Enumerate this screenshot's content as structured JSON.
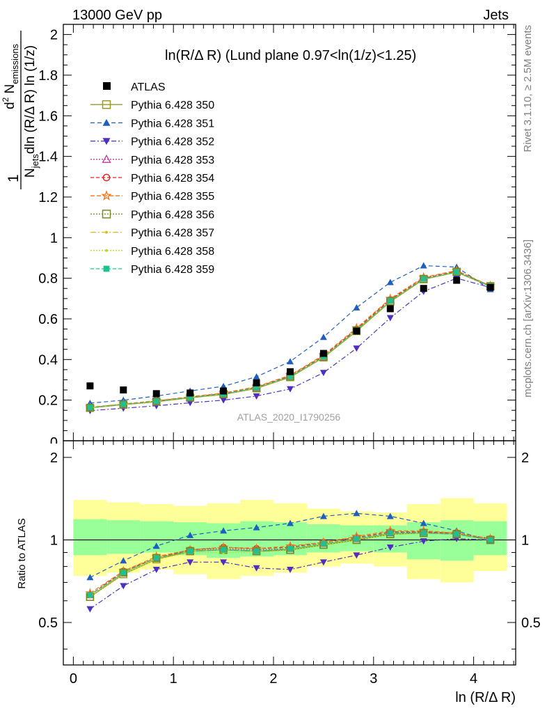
{
  "header": {
    "left": "13000 GeV pp",
    "right": "Jets"
  },
  "side_labels": {
    "rivet": "Rivet 3.1.10, ≥ 2.5M events",
    "mcplots": "mcplots.cern.ch [arXiv:1306.3436]"
  },
  "watermark": "ATLAS_2020_I1790256",
  "chart_data": [
    {
      "type": "line",
      "title": "ln(R/Δ R) (Lund plane 0.97<ln(1/z)<1.25)",
      "ylabel": "1/N_jets d²N_emissions / dln(R/Δ R) ln(1/z)",
      "xlim": [
        -0.1,
        4.42
      ],
      "ylim": [
        0,
        2.05
      ],
      "yticks": [
        "0.2",
        "0.4",
        "0.6",
        "0.8",
        "1",
        "1.2",
        "1.4",
        "1.6",
        "1.8",
        "2"
      ],
      "x": [
        0.167,
        0.5,
        0.83,
        1.167,
        1.5,
        1.83,
        2.167,
        2.5,
        2.83,
        3.167,
        3.5,
        3.83,
        4.167
      ],
      "data": {
        "name": "ATLAS",
        "values": [
          0.27,
          0.25,
          0.232,
          0.235,
          0.245,
          0.285,
          0.34,
          0.43,
          0.54,
          0.65,
          0.75,
          0.79,
          0.755
        ]
      },
      "series": [
        {
          "name": "Pythia 6.428 350",
          "color": "#9a9a20",
          "marker": "square-open",
          "dash": "",
          "values": [
            0.162,
            0.178,
            0.192,
            0.212,
            0.228,
            0.258,
            0.313,
            0.41,
            0.54,
            0.685,
            0.795,
            0.83,
            0.76
          ]
        },
        {
          "name": "Pythia 6.428 351",
          "color": "#1f5fbf",
          "marker": "triangle-up",
          "dash": "6,4",
          "values": [
            0.185,
            0.2,
            0.22,
            0.245,
            0.268,
            0.315,
            0.39,
            0.51,
            0.655,
            0.78,
            0.862,
            0.855,
            0.745
          ]
        },
        {
          "name": "Pythia 6.428 352",
          "color": "#4f2fbf",
          "marker": "triangle-down",
          "dash": "7,3,2,3",
          "values": [
            0.148,
            0.16,
            0.172,
            0.187,
            0.2,
            0.22,
            0.255,
            0.335,
            0.455,
            0.605,
            0.735,
            0.8,
            0.755
          ]
        },
        {
          "name": "Pythia 6.428 353",
          "color": "#c0399a",
          "marker": "triangle-open",
          "dash": "2,2",
          "values": [
            0.163,
            0.179,
            0.194,
            0.214,
            0.231,
            0.262,
            0.318,
            0.415,
            0.547,
            0.693,
            0.8,
            0.833,
            0.762
          ]
        },
        {
          "name": "Pythia 6.428 354",
          "color": "#e02020",
          "marker": "circle-open",
          "dash": "5,3",
          "values": [
            0.164,
            0.18,
            0.196,
            0.215,
            0.233,
            0.263,
            0.32,
            0.418,
            0.55,
            0.695,
            0.8,
            0.835,
            0.762
          ]
        },
        {
          "name": "Pythia 6.428 355",
          "color": "#f07820",
          "marker": "star-open",
          "dash": "6,3",
          "values": [
            0.165,
            0.181,
            0.197,
            0.217,
            0.235,
            0.266,
            0.323,
            0.422,
            0.555,
            0.7,
            0.805,
            0.838,
            0.763
          ]
        },
        {
          "name": "Pythia 6.428 356",
          "color": "#7a8a20",
          "marker": "square-open",
          "dash": "2,2",
          "values": [
            0.162,
            0.178,
            0.193,
            0.213,
            0.23,
            0.26,
            0.316,
            0.413,
            0.543,
            0.688,
            0.797,
            0.832,
            0.761
          ]
        },
        {
          "name": "Pythia 6.428 357",
          "color": "#d8c020",
          "marker": "dot",
          "dash": "8,3,2,3",
          "values": [
            0.163,
            0.179,
            0.194,
            0.214,
            0.23,
            0.261,
            0.317,
            0.414,
            0.545,
            0.69,
            0.798,
            0.832,
            0.761
          ]
        },
        {
          "name": "Pythia 6.428 358",
          "color": "#b8d830",
          "marker": "dot",
          "dash": "2,2",
          "values": [
            0.162,
            0.178,
            0.193,
            0.212,
            0.229,
            0.259,
            0.315,
            0.412,
            0.542,
            0.687,
            0.796,
            0.83,
            0.76
          ]
        },
        {
          "name": "Pythia 6.428 359",
          "color": "#20c090",
          "marker": "square-filled",
          "dash": "5,3",
          "values": [
            0.163,
            0.179,
            0.194,
            0.213,
            0.23,
            0.261,
            0.316,
            0.414,
            0.544,
            0.689,
            0.797,
            0.831,
            0.761
          ]
        }
      ]
    },
    {
      "type": "line",
      "xlabel": "ln (R/Δ R)",
      "ylabel": "Ratio to ATLAS",
      "xlim": [
        -0.1,
        4.42
      ],
      "ylim": [
        0.35,
        2.3
      ],
      "xticks": [
        "0",
        "1",
        "2",
        "3",
        "4"
      ],
      "yticks": [
        "0.5",
        "1",
        "2"
      ],
      "x_edges": [
        0,
        0.333,
        0.667,
        1.0,
        1.333,
        1.667,
        2.0,
        2.333,
        2.667,
        3.0,
        3.333,
        3.667,
        4.0,
        4.333
      ],
      "band_stat_sys": {
        "lo": [
          0.74,
          0.76,
          0.78,
          0.75,
          0.72,
          0.74,
          0.76,
          0.8,
          0.82,
          0.8,
          0.72,
          0.7,
          0.77
        ],
        "hi": [
          1.4,
          1.37,
          1.35,
          1.33,
          1.36,
          1.4,
          1.36,
          1.3,
          1.27,
          1.26,
          1.35,
          1.42,
          1.36
        ]
      },
      "band_stat": {
        "lo": [
          0.88,
          0.89,
          0.9,
          0.88,
          0.86,
          0.87,
          0.88,
          0.9,
          0.91,
          0.9,
          0.85,
          0.84,
          0.88
        ],
        "hi": [
          1.19,
          1.18,
          1.17,
          1.16,
          1.15,
          1.17,
          1.16,
          1.14,
          1.13,
          1.13,
          1.16,
          1.18,
          1.17
        ]
      },
      "ratios": [
        [
          0.62,
          0.75,
          0.85,
          0.91,
          0.92,
          0.91,
          0.92,
          0.96,
          1.0,
          1.05,
          1.06,
          1.05,
          1.0
        ],
        [
          0.73,
          0.84,
          0.95,
          1.04,
          1.08,
          1.11,
          1.15,
          1.22,
          1.25,
          1.22,
          1.15,
          1.08,
          0.99
        ],
        [
          0.56,
          0.68,
          0.78,
          0.83,
          0.83,
          0.79,
          0.78,
          0.83,
          0.88,
          0.94,
          0.99,
          1.01,
          1.0
        ],
        [
          0.63,
          0.76,
          0.86,
          0.92,
          0.93,
          0.92,
          0.93,
          0.97,
          1.01,
          1.06,
          1.07,
          1.05,
          1.01
        ],
        [
          0.63,
          0.77,
          0.86,
          0.92,
          0.94,
          0.93,
          0.94,
          0.98,
          1.02,
          1.07,
          1.07,
          1.06,
          1.01
        ],
        [
          0.64,
          0.77,
          0.87,
          0.92,
          0.94,
          0.93,
          0.95,
          0.98,
          1.03,
          1.08,
          1.08,
          1.06,
          1.01
        ],
        [
          0.62,
          0.76,
          0.86,
          0.91,
          0.92,
          0.91,
          0.92,
          0.96,
          1.0,
          1.05,
          1.06,
          1.05,
          1.0
        ],
        [
          0.63,
          0.76,
          0.86,
          0.91,
          0.92,
          0.91,
          0.93,
          0.97,
          1.01,
          1.06,
          1.06,
          1.05,
          1.0
        ],
        [
          0.62,
          0.75,
          0.85,
          0.9,
          0.9,
          0.9,
          0.92,
          0.96,
          1.0,
          1.05,
          1.06,
          1.05,
          1.0
        ],
        [
          0.63,
          0.76,
          0.86,
          0.91,
          0.92,
          0.91,
          0.93,
          0.97,
          1.01,
          1.06,
          1.06,
          1.05,
          1.0
        ]
      ]
    }
  ]
}
